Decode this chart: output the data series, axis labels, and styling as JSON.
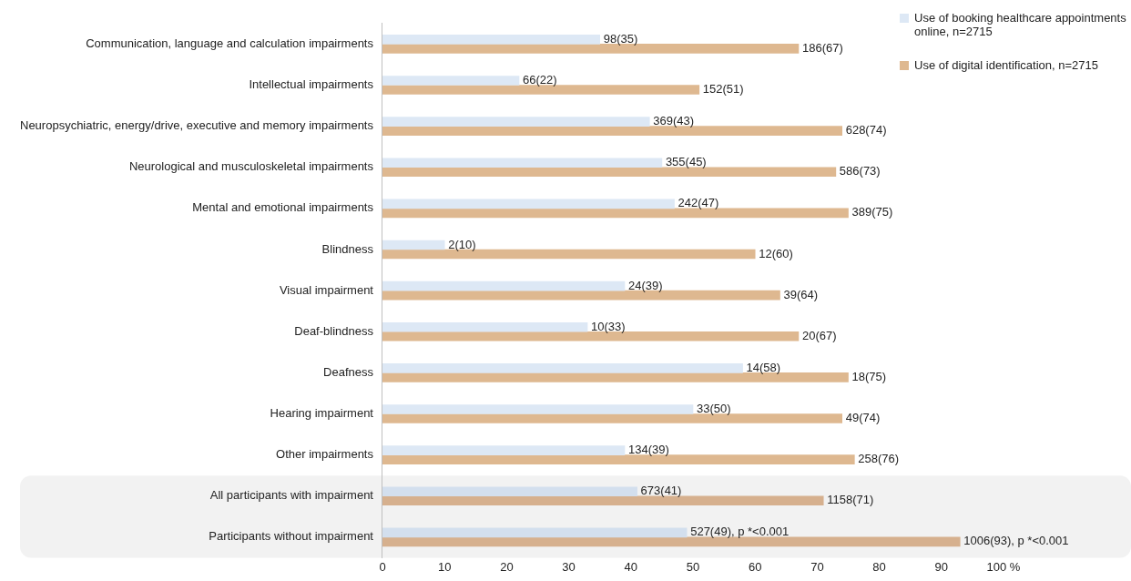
{
  "chart_data": {
    "type": "bar",
    "orientation": "horizontal",
    "categories": [
      "Communication, language and calculation impairments",
      "Intellectual impairments",
      "Neuropsychiatric, energy/drive, executive and memory impairments",
      "Neurological and musculoskeletal impairments",
      "Mental and emotional impairments",
      "Blindness",
      "Visual impairment",
      "Deaf-blindness",
      "Deafness",
      "Hearing impairment",
      "Other impairments",
      "All participants with impairment",
      "Participants without impairment"
    ],
    "series": [
      {
        "name": "Use of booking healthcare appointments online, n=2715",
        "color": "#dde8f5",
        "colors": [
          "#dde8f5",
          "#dde8f5",
          "#dde8f5",
          "#dde8f5",
          "#dde8f5",
          "#dde8f5",
          "#dde8f5",
          "#dde8f5",
          "#dde8f5",
          "#dde8f5",
          "#dde8f5",
          "#d3dfee",
          "#d3dfee"
        ],
        "values": [
          35,
          22,
          43,
          45,
          47,
          10,
          39,
          33,
          58,
          50,
          39,
          41,
          49
        ],
        "value_labels": [
          "98(35)",
          "66(22)",
          "369(43)",
          "355(45)",
          "242(47)",
          "2(10)",
          "24(39)",
          "10(33)",
          "14(58)",
          "33(50)",
          "134(39)",
          "673(41)",
          "527(49), p *<0.001"
        ]
      },
      {
        "name": "Use of digital identification, n=2715",
        "color": "#deb890",
        "colors": [
          "#deb890",
          "#deb890",
          "#deb890",
          "#deb890",
          "#deb890",
          "#deb890",
          "#deb890",
          "#deb890",
          "#deb890",
          "#deb890",
          "#deb890",
          "#d6b08e",
          "#d6b08e"
        ],
        "values": [
          67,
          51,
          74,
          73,
          75,
          60,
          64,
          67,
          75,
          74,
          76,
          71,
          93
        ],
        "value_labels": [
          "186(67)",
          "152(51)",
          "628(74)",
          "586(73)",
          "389(75)",
          "12(60)",
          "39(64)",
          "20(67)",
          "18(75)",
          "49(74)",
          "258(76)",
          "1158(71)",
          "1006(93), p *<0.001"
        ]
      }
    ],
    "xlim": [
      0,
      100
    ],
    "xticks": [
      0,
      10,
      20,
      30,
      40,
      50,
      60,
      70,
      80,
      90,
      {
        "value": 100,
        "label": "100 %"
      }
    ],
    "bands": [
      {
        "axis": "y",
        "from": "All participants with impairment",
        "to": "Participants without impairment",
        "color": "#f2f2f2"
      }
    ],
    "grid": false,
    "legend": "top right"
  }
}
